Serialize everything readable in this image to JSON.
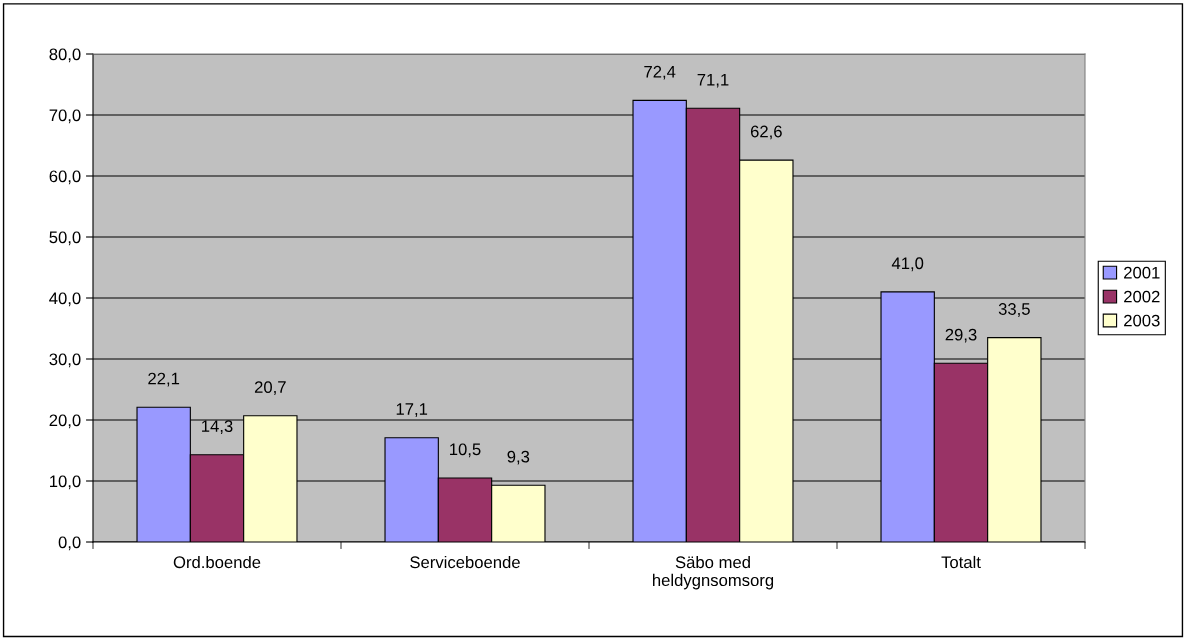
{
  "chart_data": {
    "type": "bar",
    "categories": [
      "Ord.boende",
      "Serviceboende",
      "Säbo med\nheldygnsomsorg",
      "Totalt"
    ],
    "series": [
      {
        "name": "2001",
        "color": "#9999ff",
        "values": [
          22.1,
          17.1,
          72.4,
          41.0
        ],
        "value_labels": [
          "22,1",
          "17,1",
          "72,4",
          "41,0"
        ]
      },
      {
        "name": "2002",
        "color": "#993366",
        "values": [
          14.3,
          10.5,
          71.1,
          29.3
        ],
        "value_labels": [
          "14,3",
          "10,5",
          "71,1",
          "29,3"
        ]
      },
      {
        "name": "2003",
        "color": "#ffffcc",
        "values": [
          20.7,
          9.3,
          62.6,
          33.5
        ],
        "value_labels": [
          "20,7",
          "9,3",
          "62,6",
          "33,5"
        ]
      }
    ],
    "ylim": [
      0,
      80
    ],
    "yticks": [
      {
        "value": 0,
        "label": "0,0"
      },
      {
        "value": 10,
        "label": "10,0"
      },
      {
        "value": 20,
        "label": "20,0"
      },
      {
        "value": 30,
        "label": "30,0"
      },
      {
        "value": 40,
        "label": "40,0"
      },
      {
        "value": 50,
        "label": "50,0"
      },
      {
        "value": 60,
        "label": "60,0"
      },
      {
        "value": 70,
        "label": "70,0"
      },
      {
        "value": 80,
        "label": "80,0"
      }
    ],
    "grid": "y",
    "legend": "right"
  }
}
